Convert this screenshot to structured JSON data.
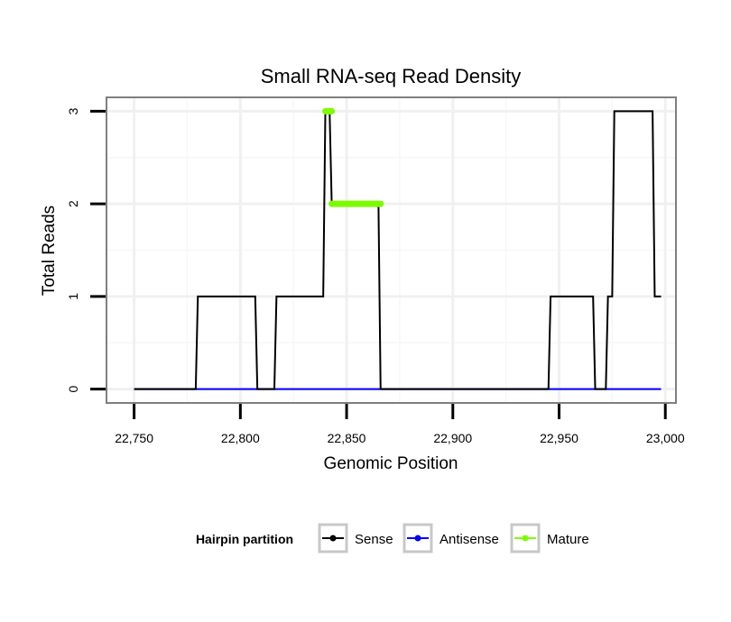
{
  "chart_data": {
    "type": "line",
    "title": "Small RNA-seq Read Density",
    "xlabel": "Genomic Position",
    "ylabel": "Total Reads",
    "xlim": [
      22737,
      23005
    ],
    "ylim": [
      -0.15,
      3.15
    ],
    "x_ticks": [
      22750,
      22800,
      22850,
      22900,
      22950,
      23000
    ],
    "x_tick_labels": [
      "22,750",
      "22,800",
      "22,850",
      "22,900",
      "22,950",
      "23,000"
    ],
    "y_ticks": [
      0,
      1,
      2,
      3
    ],
    "y_tick_labels": [
      "0",
      "1",
      "2",
      "3"
    ],
    "grid": true,
    "legend": {
      "title": "Hairpin partition",
      "position": "bottom",
      "entries": [
        "Sense",
        "Antisense",
        "Mature"
      ]
    },
    "series": [
      {
        "name": "Sense",
        "color": "#000000",
        "x": [
          22750,
          22779,
          22780,
          22807,
          22808,
          22816,
          22817,
          22839,
          22840,
          22842,
          22843,
          22865,
          22866,
          22945,
          22946,
          22966,
          22967,
          22972,
          22973,
          22975,
          22976,
          22994,
          22995,
          22998
        ],
        "y": [
          0,
          0,
          1,
          1,
          0,
          0,
          1,
          1,
          3,
          3,
          2,
          2,
          0,
          0,
          1,
          1,
          0,
          0,
          1,
          1,
          3,
          3,
          1,
          1
        ]
      },
      {
        "name": "Antisense",
        "color": "#0000ff",
        "x": [
          22750,
          22998
        ],
        "y": [
          0,
          0
        ]
      },
      {
        "name": "Mature",
        "color": "#7cfc00",
        "segments": [
          {
            "x": [
              22840,
              22843
            ],
            "y": [
              3,
              3
            ]
          },
          {
            "x": [
              22843,
              22866
            ],
            "y": [
              2,
              2
            ]
          }
        ]
      }
    ]
  }
}
